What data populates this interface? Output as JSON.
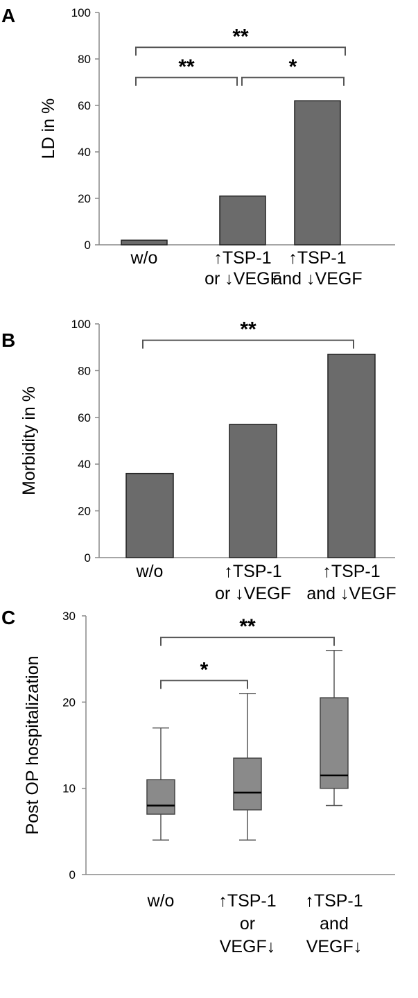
{
  "chart_data": [
    {
      "panel": "A",
      "type": "bar",
      "ylabel": "LD in %",
      "ylim": [
        0,
        100
      ],
      "yticks": [
        0,
        20,
        40,
        60,
        80,
        100
      ],
      "categories": [
        [
          "w/o"
        ],
        [
          "↑TSP-1",
          "or ↓VEGF"
        ],
        [
          "↑TSP-1",
          "and ↓VEGF"
        ]
      ],
      "values": [
        2,
        21,
        62
      ],
      "bar_color": "#6b6b6b",
      "significance": [
        {
          "from": 0,
          "to": 1,
          "label": "**",
          "level": 72
        },
        {
          "from": 1,
          "to": 2,
          "label": "*",
          "level": 72
        },
        {
          "from": 0,
          "to": 2,
          "label": "**",
          "level": 85
        }
      ]
    },
    {
      "panel": "B",
      "type": "bar",
      "ylabel": "Morbidity in %",
      "ylim": [
        0,
        100
      ],
      "yticks": [
        0,
        20,
        40,
        60,
        80,
        100
      ],
      "categories": [
        [
          "w/o"
        ],
        [
          "↑TSP-1",
          "or ↓VEGF"
        ],
        [
          "↑TSP-1",
          "and ↓VEGF"
        ]
      ],
      "values": [
        36,
        57,
        87
      ],
      "bar_color": "#6b6b6b",
      "significance": [
        {
          "from": 0,
          "to": 2,
          "label": "**",
          "level": 93
        }
      ]
    },
    {
      "panel": "C",
      "type": "box",
      "ylabel": "Post OP hospitalization",
      "ylim": [
        0,
        30
      ],
      "yticks": [
        0,
        10,
        20,
        30
      ],
      "categories": [
        [
          "w/o"
        ],
        [
          "↑TSP-1",
          "or",
          "VEGF↓"
        ],
        [
          "↑TSP-1",
          "and",
          "VEGF↓"
        ]
      ],
      "boxes": [
        {
          "min": 4,
          "q1": 7,
          "median": 8,
          "q3": 11,
          "max": 17
        },
        {
          "min": 4,
          "q1": 7.5,
          "median": 9.5,
          "q3": 13.5,
          "max": 21
        },
        {
          "min": 8,
          "q1": 10,
          "median": 11.5,
          "q3": 20.5,
          "max": 26
        }
      ],
      "box_color": "#8a8a8a",
      "significance": [
        {
          "from": 0,
          "to": 1,
          "label": "*",
          "level": 22.5
        },
        {
          "from": 0,
          "to": 2,
          "label": "**",
          "level": 27.5
        }
      ]
    }
  ]
}
